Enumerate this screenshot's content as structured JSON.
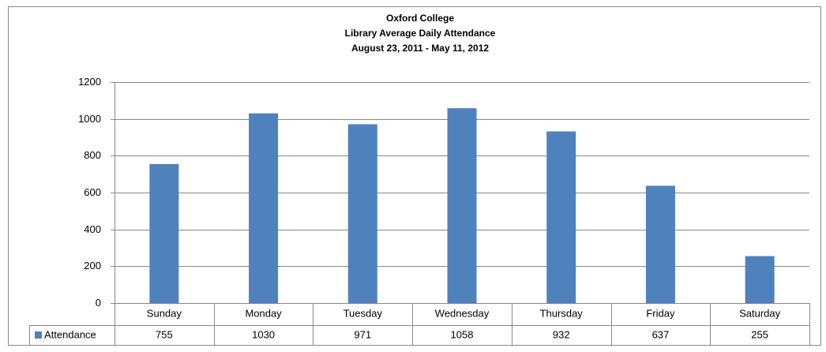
{
  "chart_data": {
    "type": "bar",
    "title": "Oxford College",
    "subtitle": [
      "Library Average Daily Attendance",
      "August 23, 2011 - May 11, 2012"
    ],
    "categories": [
      "Sunday",
      "Monday",
      "Tuesday",
      "Wednesday",
      "Thursday",
      "Friday",
      "Saturday"
    ],
    "series": [
      {
        "name": "Attendance",
        "color": "#4f81bd",
        "values": [
          755,
          1030,
          971,
          1058,
          932,
          637,
          255
        ]
      }
    ],
    "ylim": [
      0,
      1200
    ],
    "yticks": [
      0,
      200,
      400,
      600,
      800,
      1000,
      1200
    ],
    "grid": true,
    "data_table": true
  }
}
